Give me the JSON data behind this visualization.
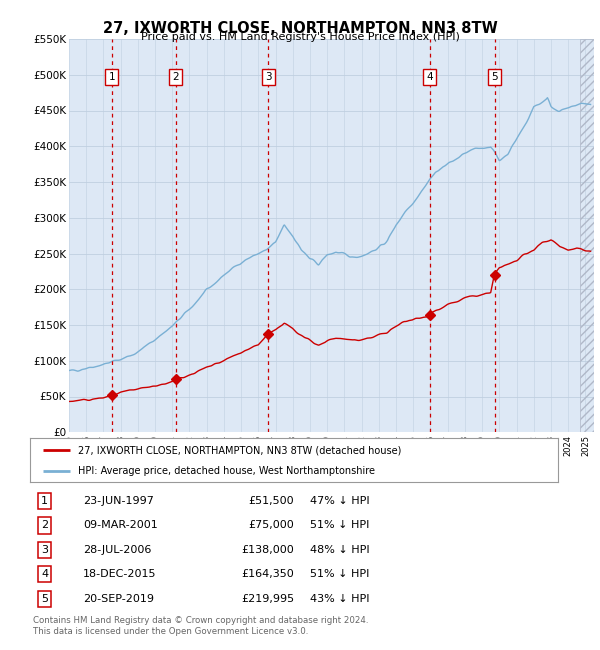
{
  "title": "27, IXWORTH CLOSE, NORTHAMPTON, NN3 8TW",
  "subtitle": "Price paid vs. HM Land Registry's House Price Index (HPI)",
  "ylim": [
    0,
    550000
  ],
  "yticks": [
    0,
    50000,
    100000,
    150000,
    200000,
    250000,
    300000,
    350000,
    400000,
    450000,
    500000,
    550000
  ],
  "ytick_labels": [
    "£0",
    "£50K",
    "£100K",
    "£150K",
    "£200K",
    "£250K",
    "£300K",
    "£350K",
    "£400K",
    "£450K",
    "£500K",
    "£550K"
  ],
  "xlim_start": 1995.0,
  "xlim_end": 2025.5,
  "sales": [
    {
      "label": "1",
      "date": "23-JUN-1997",
      "year": 1997.48,
      "price": 51500,
      "hpi_pct": "47% ↓ HPI"
    },
    {
      "label": "2",
      "date": "09-MAR-2001",
      "year": 2001.19,
      "price": 75000,
      "hpi_pct": "51% ↓ HPI"
    },
    {
      "label": "3",
      "date": "28-JUL-2006",
      "year": 2006.58,
      "price": 138000,
      "hpi_pct": "48% ↓ HPI"
    },
    {
      "label": "4",
      "date": "18-DEC-2015",
      "year": 2015.96,
      "price": 164350,
      "hpi_pct": "51% ↓ HPI"
    },
    {
      "label": "5",
      "date": "20-SEP-2019",
      "year": 2019.72,
      "price": 219995,
      "hpi_pct": "43% ↓ HPI"
    }
  ],
  "legend_line1": "27, IXWORTH CLOSE, NORTHAMPTON, NN3 8TW (detached house)",
  "legend_line2": "HPI: Average price, detached house, West Northamptonshire",
  "footer1": "Contains HM Land Registry data © Crown copyright and database right 2024.",
  "footer2": "This data is licensed under the Open Government Licence v3.0.",
  "bg_color": "#dde8f5",
  "line_red": "#cc0000",
  "line_blue": "#7ab0d4",
  "grid_color": "#c0cfe0",
  "sale_vline_color": "#cc0000",
  "box_color": "#cc0000",
  "hpi_knots": [
    [
      1995.0,
      85000
    ],
    [
      1996.0,
      90000
    ],
    [
      1997.0,
      95000
    ],
    [
      1998.0,
      102000
    ],
    [
      1999.0,
      112000
    ],
    [
      2000.0,
      130000
    ],
    [
      2001.0,
      148000
    ],
    [
      2002.0,
      172000
    ],
    [
      2003.0,
      198000
    ],
    [
      2004.0,
      220000
    ],
    [
      2005.0,
      238000
    ],
    [
      2006.0,
      250000
    ],
    [
      2006.5,
      255000
    ],
    [
      2007.0,
      265000
    ],
    [
      2007.5,
      290000
    ],
    [
      2008.0,
      275000
    ],
    [
      2008.5,
      255000
    ],
    [
      2009.0,
      242000
    ],
    [
      2009.5,
      235000
    ],
    [
      2010.0,
      248000
    ],
    [
      2010.5,
      252000
    ],
    [
      2011.0,
      248000
    ],
    [
      2011.5,
      245000
    ],
    [
      2012.0,
      247000
    ],
    [
      2012.5,
      252000
    ],
    [
      2013.0,
      258000
    ],
    [
      2013.5,
      268000
    ],
    [
      2014.0,
      290000
    ],
    [
      2014.5,
      308000
    ],
    [
      2015.0,
      322000
    ],
    [
      2015.5,
      338000
    ],
    [
      2016.0,
      355000
    ],
    [
      2016.5,
      368000
    ],
    [
      2017.0,
      375000
    ],
    [
      2017.5,
      382000
    ],
    [
      2018.0,
      390000
    ],
    [
      2018.5,
      395000
    ],
    [
      2019.0,
      398000
    ],
    [
      2019.5,
      400000
    ],
    [
      2020.0,
      380000
    ],
    [
      2020.5,
      390000
    ],
    [
      2021.0,
      410000
    ],
    [
      2021.5,
      430000
    ],
    [
      2022.0,
      455000
    ],
    [
      2022.5,
      462000
    ],
    [
      2022.8,
      468000
    ],
    [
      2023.0,
      455000
    ],
    [
      2023.5,
      450000
    ],
    [
      2024.0,
      452000
    ],
    [
      2024.5,
      458000
    ],
    [
      2025.0,
      460000
    ],
    [
      2025.3,
      458000
    ]
  ],
  "red_knots": [
    [
      1995.0,
      43000
    ],
    [
      1996.0,
      45000
    ],
    [
      1997.0,
      48000
    ],
    [
      1997.48,
      51500
    ],
    [
      1998.0,
      55000
    ],
    [
      1999.0,
      60000
    ],
    [
      2000.0,
      65000
    ],
    [
      2001.0,
      70000
    ],
    [
      2001.19,
      75000
    ],
    [
      2002.0,
      80000
    ],
    [
      2003.0,
      90000
    ],
    [
      2004.0,
      100000
    ],
    [
      2005.0,
      112000
    ],
    [
      2006.0,
      122000
    ],
    [
      2006.58,
      138000
    ],
    [
      2007.0,
      142000
    ],
    [
      2007.5,
      152000
    ],
    [
      2008.0,
      145000
    ],
    [
      2008.5,
      135000
    ],
    [
      2009.0,
      128000
    ],
    [
      2009.5,
      122000
    ],
    [
      2010.0,
      128000
    ],
    [
      2010.5,
      132000
    ],
    [
      2011.0,
      130000
    ],
    [
      2011.5,
      128000
    ],
    [
      2012.0,
      130000
    ],
    [
      2012.5,
      132000
    ],
    [
      2013.0,
      136000
    ],
    [
      2013.5,
      140000
    ],
    [
      2014.0,
      148000
    ],
    [
      2014.5,
      155000
    ],
    [
      2015.0,
      158000
    ],
    [
      2015.5,
      160000
    ],
    [
      2015.96,
      164350
    ],
    [
      2016.0,
      168000
    ],
    [
      2016.5,
      172000
    ],
    [
      2017.0,
      178000
    ],
    [
      2017.5,
      182000
    ],
    [
      2018.0,
      188000
    ],
    [
      2018.5,
      190000
    ],
    [
      2019.0,
      192000
    ],
    [
      2019.5,
      195000
    ],
    [
      2019.72,
      219995
    ],
    [
      2020.0,
      230000
    ],
    [
      2020.5,
      235000
    ],
    [
      2021.0,
      240000
    ],
    [
      2021.5,
      248000
    ],
    [
      2022.0,
      255000
    ],
    [
      2022.5,
      265000
    ],
    [
      2023.0,
      270000
    ],
    [
      2023.5,
      260000
    ],
    [
      2024.0,
      255000
    ],
    [
      2024.5,
      258000
    ],
    [
      2025.0,
      255000
    ],
    [
      2025.3,
      253000
    ]
  ]
}
